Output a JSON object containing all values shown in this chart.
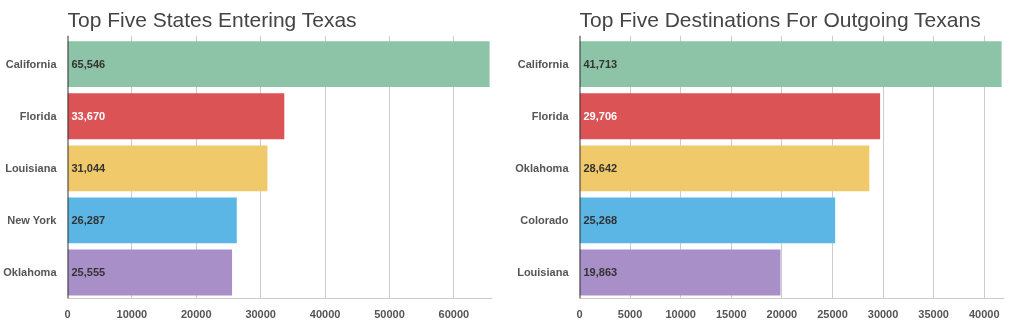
{
  "chart_data": [
    {
      "type": "bar",
      "orientation": "horizontal",
      "title": "Top Five States Entering Texas",
      "categories": [
        "California",
        "Florida",
        "Louisiana",
        "New York",
        "Oklahoma"
      ],
      "values": [
        65546,
        33670,
        31044,
        26287,
        25555
      ],
      "value_labels": [
        "65,546",
        "33,670",
        "31,044",
        "26,287",
        "25,555"
      ],
      "colors": [
        "#8dc3a7",
        "#dc5356",
        "#f0c96a",
        "#5bb5e5",
        "#a98fc7"
      ],
      "xlim": [
        0,
        66000
      ],
      "xticks": [
        0,
        10000,
        20000,
        30000,
        40000,
        50000,
        60000
      ],
      "grid": "x"
    },
    {
      "type": "bar",
      "orientation": "horizontal",
      "title": "Top Five Destinations For Outgoing Texans",
      "categories": [
        "California",
        "Florida",
        "Oklahoma",
        "Colorado",
        "Louisiana"
      ],
      "values": [
        41713,
        29706,
        28642,
        25268,
        19863
      ],
      "value_labels": [
        "41,713",
        "29,706",
        "28,642",
        "25,268",
        "19,863"
      ],
      "colors": [
        "#8dc3a7",
        "#dc5356",
        "#f0c96a",
        "#5bb5e5",
        "#a98fc7"
      ],
      "xlim": [
        0,
        42000
      ],
      "xticks": [
        0,
        5000,
        10000,
        15000,
        20000,
        25000,
        30000,
        35000,
        40000
      ],
      "grid": "x"
    }
  ]
}
